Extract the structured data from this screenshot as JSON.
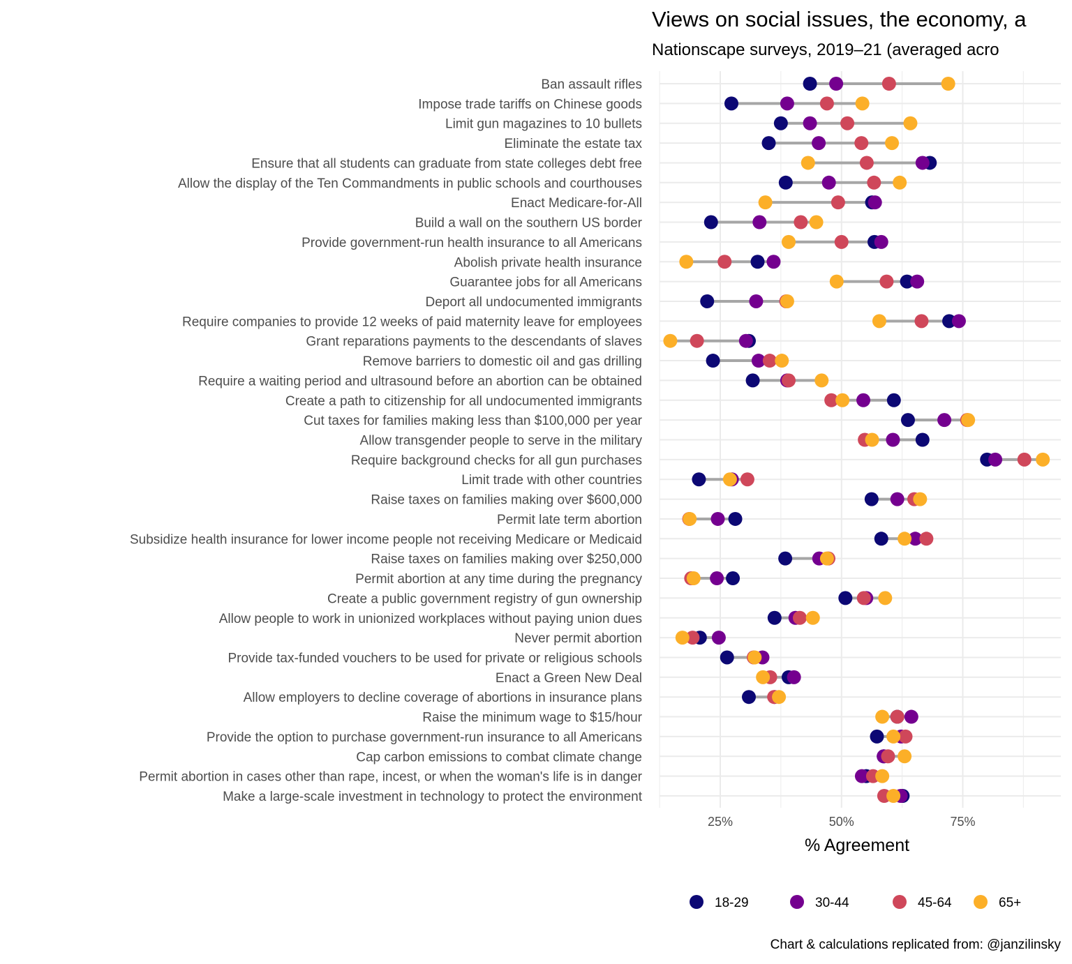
{
  "title": "Views on social issues, the economy, a",
  "subtitle": "Nationscape surveys, 2019–21 (averaged acro",
  "caption": "Chart & calculations replicated from: @janzilinsky",
  "colors": {
    "18-29": "#0c0874",
    "30-44": "#74008f",
    "45-64": "#cf475a",
    "65+": "#fcaf28",
    "segment": "#a6a6a6",
    "grid": "#ebebeb"
  },
  "chart_data": {
    "type": "scatter",
    "subtype": "dot-range",
    "title": "Views on social issues, the economy, a",
    "xlabel": "% Agreement",
    "ylabel": "",
    "xlim": [
      12.5,
      95
    ],
    "xticks": [
      25,
      50,
      75
    ],
    "xtick_labels": [
      "25%",
      "50%",
      "75%"
    ],
    "grid": true,
    "legend": {
      "placement": "bottom",
      "entries": [
        "18-29",
        "30-44",
        "45-64",
        "65+"
      ]
    },
    "series_order": [
      "18-29",
      "30-44",
      "45-64",
      "65+"
    ],
    "rows": [
      {
        "label": "Ban assault rifles",
        "values": [
          43.5,
          48.9,
          59.8,
          72.0
        ]
      },
      {
        "label": "Impose trade tariffs on Chinese goods",
        "values": [
          27.3,
          38.8,
          47.0,
          54.3
        ]
      },
      {
        "label": "Limit gun magazines to 10 bullets",
        "values": [
          37.5,
          43.5,
          51.2,
          64.2
        ]
      },
      {
        "label": "Eliminate the estate tax",
        "values": [
          35.0,
          45.3,
          54.1,
          60.4
        ]
      },
      {
        "label": "Ensure that all students can graduate from state colleges debt free",
        "values": [
          68.2,
          66.7,
          55.2,
          43.1
        ]
      },
      {
        "label": "Allow the display of the Ten Commandments in public schools and courthouses",
        "values": [
          38.5,
          47.4,
          56.7,
          62.0
        ]
      },
      {
        "label": "Enact Medicare-for-All",
        "values": [
          56.3,
          56.9,
          49.3,
          34.3
        ]
      },
      {
        "label": "Build a wall on the southern US border",
        "values": [
          23.1,
          33.1,
          41.6,
          44.8
        ]
      },
      {
        "label": "Provide government-run health insurance to all Americans",
        "values": [
          56.8,
          58.2,
          50.0,
          39.1
        ]
      },
      {
        "label": "Abolish private health insurance",
        "values": [
          32.7,
          36.0,
          25.9,
          18.0
        ]
      },
      {
        "label": "Guarantee jobs for all Americans",
        "values": [
          63.5,
          65.6,
          59.3,
          49.0
        ]
      },
      {
        "label": "Deport all undocumented immigrants",
        "values": [
          22.3,
          32.4,
          38.6,
          38.8
        ]
      },
      {
        "label": "Require companies to provide 12 weeks of paid maternity leave for employees",
        "values": [
          72.2,
          74.2,
          66.5,
          57.8
        ]
      },
      {
        "label": "Grant reparations payments to the descendants of slaves",
        "values": [
          30.9,
          30.3,
          20.2,
          14.7
        ]
      },
      {
        "label": "Remove barriers to domestic oil and gas drilling",
        "values": [
          23.5,
          32.9,
          35.2,
          37.7
        ]
      },
      {
        "label": "Require a waiting period and ultrasound before an abortion can be obtained",
        "values": [
          31.7,
          38.8,
          39.1,
          45.9
        ]
      },
      {
        "label": "Create a path to citizenship for all undocumented immigrants",
        "values": [
          60.8,
          54.5,
          47.9,
          50.2
        ]
      },
      {
        "label": "Cut taxes for families making less than $100,000 per year",
        "values": [
          63.7,
          71.2,
          75.9,
          76.1
        ]
      },
      {
        "label": "Allow transgender people to serve in the military",
        "values": [
          66.7,
          60.6,
          54.8,
          56.3
        ]
      },
      {
        "label": "Require background checks for all gun purchases",
        "values": [
          80.0,
          81.7,
          87.7,
          91.5
        ]
      },
      {
        "label": "Limit trade with other countries",
        "values": [
          20.6,
          27.4,
          30.6,
          27.0
        ]
      },
      {
        "label": "Raise taxes on families making over $600,000",
        "values": [
          56.2,
          61.5,
          65.0,
          66.2
        ]
      },
      {
        "label": "Permit late term abortion",
        "values": [
          28.1,
          24.5,
          18.6,
          18.7
        ]
      },
      {
        "label": "Subsidize health insurance for lower income people not receiving Medicare or Medicaid",
        "values": [
          58.2,
          65.2,
          67.5,
          63.0
        ]
      },
      {
        "label": "Raise taxes on families making over $250,000",
        "values": [
          38.4,
          45.4,
          47.3,
          47.0
        ]
      },
      {
        "label": "Permit abortion at any time during the pregnancy",
        "values": [
          27.6,
          24.3,
          19.0,
          19.5
        ]
      },
      {
        "label": "Create a public government registry of gun ownership",
        "values": [
          50.8,
          55.1,
          54.6,
          59.0
        ]
      },
      {
        "label": "Allow people to work in unionized workplaces without paying union dues",
        "values": [
          36.2,
          40.5,
          41.4,
          44.1
        ]
      },
      {
        "label": "Never permit abortion",
        "values": [
          20.8,
          24.7,
          19.3,
          17.2
        ]
      },
      {
        "label": "Provide tax-funded vouchers to be used for private or religious schools",
        "values": [
          26.4,
          33.7,
          31.9,
          32.1
        ]
      },
      {
        "label": "Enact a Green New Deal",
        "values": [
          39.1,
          40.2,
          35.3,
          33.8
        ]
      },
      {
        "label": "Allow employers to decline coverage of abortions in insurance plans",
        "values": [
          30.9,
          36.2,
          36.1,
          37.1
        ]
      },
      {
        "label": "Raise the minimum wage to $15/hour",
        "values": [
          61.5,
          64.4,
          61.5,
          58.4
        ]
      },
      {
        "label": "Provide the option to purchase government-run insurance to all Americans",
        "values": [
          57.3,
          62.3,
          63.2,
          60.7
        ]
      },
      {
        "label": "Cap carbon emissions to combat climate change",
        "values": [
          58.7,
          58.7,
          59.6,
          63.0
        ]
      },
      {
        "label": "Permit abortion in cases other than rape, incest, or when the woman's life is in danger",
        "values": [
          55.1,
          54.2,
          56.5,
          58.4
        ]
      },
      {
        "label": "Make a large-scale investment in technology to protect the environment",
        "values": [
          62.6,
          62.2,
          58.8,
          60.7
        ]
      }
    ]
  }
}
